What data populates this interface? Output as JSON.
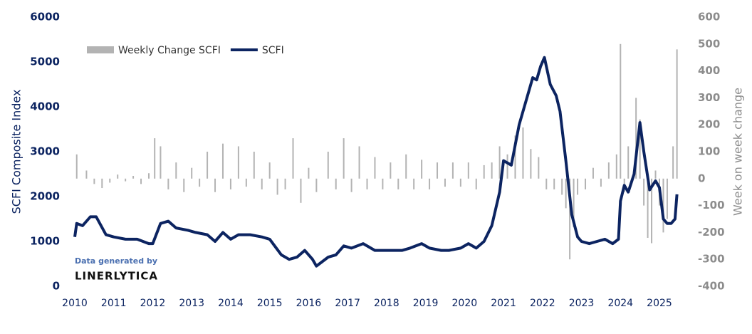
{
  "chart_data": {
    "type": "bar-line",
    "ylabel": "SCFI Composite Index",
    "y2label": "Week on week change",
    "annotations": [
      "Data generated by",
      "LINERLYTICA"
    ],
    "xlim": [
      2010,
      2025.6
    ],
    "xticks": [
      2010,
      2011,
      2012,
      2013,
      2014,
      2015,
      2016,
      2017,
      2018,
      2019,
      2020,
      2021,
      2022,
      2023,
      2024,
      2025
    ],
    "ylim": [
      0,
      6000
    ],
    "yticks": [
      0,
      1000,
      2000,
      3000,
      4000,
      5000,
      6000
    ],
    "y2lim": [
      -400,
      600
    ],
    "y2ticks": [
      -400,
      -300,
      -200,
      -100,
      0,
      100,
      200,
      300,
      400,
      500,
      600
    ],
    "legend": "top-left",
    "series": [
      {
        "name": "Weekly Change SCFI",
        "type": "bar",
        "axis": "y2",
        "color": "#b3b3b3",
        "x": [
          2010.05,
          2010.3,
          2010.5,
          2010.7,
          2010.9,
          2011.1,
          2011.3,
          2011.5,
          2011.7,
          2011.9,
          2012.05,
          2012.2,
          2012.4,
          2012.6,
          2012.8,
          2013.0,
          2013.2,
          2013.4,
          2013.6,
          2013.8,
          2014.0,
          2014.2,
          2014.4,
          2014.6,
          2014.8,
          2015.0,
          2015.2,
          2015.4,
          2015.6,
          2015.8,
          2016.0,
          2016.2,
          2016.5,
          2016.7,
          2016.9,
          2017.1,
          2017.3,
          2017.5,
          2017.7,
          2017.9,
          2018.1,
          2018.3,
          2018.5,
          2018.7,
          2018.9,
          2019.1,
          2019.3,
          2019.5,
          2019.7,
          2019.9,
          2020.1,
          2020.3,
          2020.5,
          2020.7,
          2020.9,
          2021.1,
          2021.3,
          2021.5,
          2021.7,
          2021.9,
          2022.1,
          2022.3,
          2022.5,
          2022.6,
          2022.7,
          2022.8,
          2022.9,
          2023.1,
          2023.3,
          2023.5,
          2023.7,
          2023.9,
          2024.0,
          2024.1,
          2024.2,
          2024.4,
          2024.5,
          2024.6,
          2024.7,
          2024.8,
          2024.9,
          2025.0,
          2025.1,
          2025.2,
          2025.35,
          2025.45
        ],
        "values": [
          90,
          30,
          -20,
          -35,
          -15,
          15,
          -10,
          10,
          -20,
          20,
          150,
          120,
          -40,
          60,
          -50,
          40,
          -30,
          100,
          -50,
          130,
          -40,
          120,
          -30,
          100,
          -40,
          60,
          -60,
          -40,
          150,
          -90,
          40,
          -50,
          100,
          -40,
          150,
          -50,
          120,
          -40,
          80,
          -40,
          60,
          -40,
          90,
          -40,
          70,
          -40,
          60,
          -30,
          60,
          -30,
          60,
          -40,
          50,
          60,
          120,
          90,
          160,
          190,
          110,
          80,
          -40,
          -40,
          -60,
          -110,
          -300,
          -180,
          -60,
          -40,
          40,
          -30,
          60,
          90,
          500,
          -50,
          120,
          300,
          220,
          -100,
          -220,
          -240,
          30,
          -100,
          -200,
          -150,
          120,
          480
        ]
      },
      {
        "name": "SCFI",
        "type": "line",
        "axis": "y",
        "color": "#0c2461",
        "x": [
          2010.0,
          2010.05,
          2010.2,
          2010.4,
          2010.55,
          2010.8,
          2011.0,
          2011.3,
          2011.6,
          2011.9,
          2012.0,
          2012.2,
          2012.4,
          2012.6,
          2012.9,
          2013.1,
          2013.4,
          2013.6,
          2013.8,
          2014.0,
          2014.2,
          2014.5,
          2014.8,
          2015.0,
          2015.3,
          2015.5,
          2015.7,
          2015.9,
          2016.1,
          2016.2,
          2016.5,
          2016.7,
          2016.9,
          2017.1,
          2017.4,
          2017.7,
          2017.9,
          2018.1,
          2018.4,
          2018.6,
          2018.9,
          2019.1,
          2019.4,
          2019.6,
          2019.9,
          2020.1,
          2020.3,
          2020.5,
          2020.7,
          2020.9,
          2021.0,
          2021.2,
          2021.4,
          2021.6,
          2021.75,
          2021.85,
          2021.95,
          2022.05,
          2022.2,
          2022.35,
          2022.45,
          2022.6,
          2022.75,
          2022.9,
          2023.0,
          2023.2,
          2023.4,
          2023.6,
          2023.8,
          2023.95,
          2024.0,
          2024.1,
          2024.2,
          2024.35,
          2024.5,
          2024.6,
          2024.75,
          2024.9,
          2025.0,
          2025.1,
          2025.2,
          2025.3,
          2025.4,
          2025.45
        ],
        "values": [
          1100,
          1400,
          1350,
          1550,
          1550,
          1150,
          1100,
          1050,
          1050,
          950,
          950,
          1400,
          1450,
          1300,
          1250,
          1200,
          1150,
          1000,
          1200,
          1050,
          1150,
          1150,
          1100,
          1050,
          700,
          600,
          650,
          800,
          600,
          450,
          650,
          700,
          900,
          850,
          950,
          800,
          800,
          800,
          800,
          850,
          950,
          850,
          800,
          800,
          850,
          950,
          850,
          1000,
          1350,
          2100,
          2800,
          2700,
          3600,
          4200,
          4650,
          4600,
          4900,
          5100,
          4500,
          4250,
          3900,
          2800,
          1600,
          1100,
          1000,
          950,
          1000,
          1050,
          950,
          1050,
          1900,
          2250,
          2100,
          2500,
          3650,
          3000,
          2150,
          2350,
          2200,
          1500,
          1400,
          1400,
          1500,
          2050
        ]
      }
    ]
  }
}
